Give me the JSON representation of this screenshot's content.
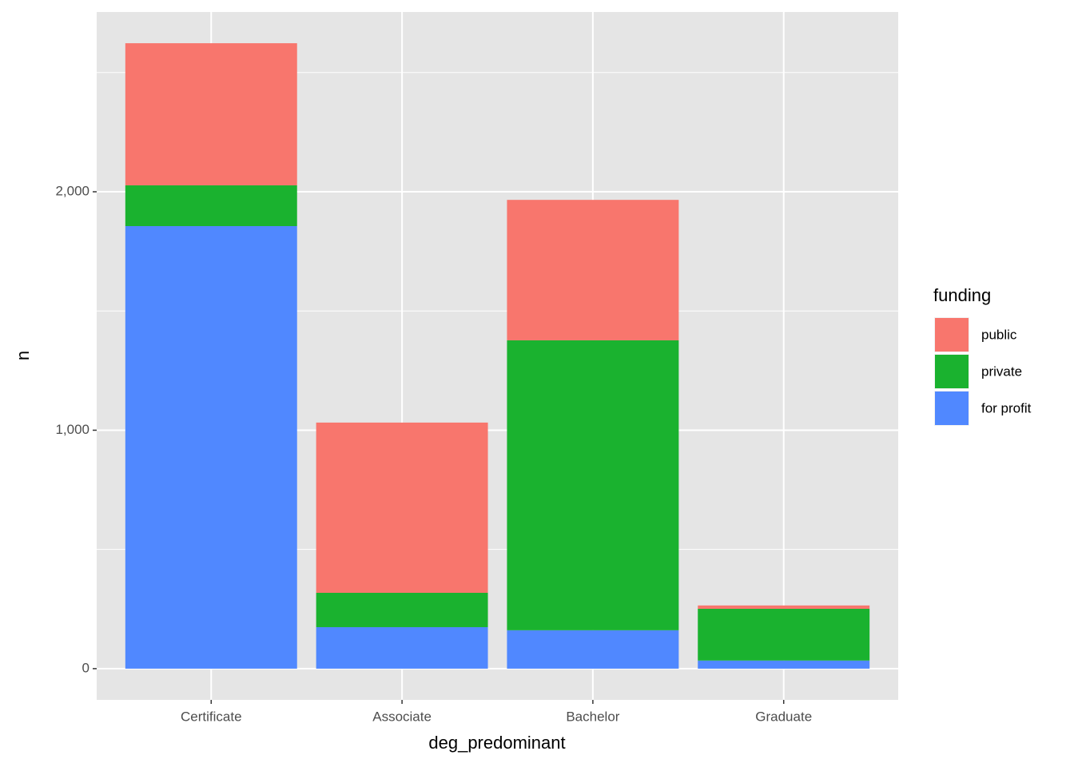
{
  "chart_data": {
    "type": "stacked_bar",
    "x_label": "deg_predominant",
    "y_label": "n",
    "categories": [
      "Certificate",
      "Associate",
      "Bachelor",
      "Graduate"
    ],
    "legend_title": "funding",
    "series": [
      {
        "name": "public",
        "color": "#F8766D",
        "values": [
          596,
          714,
          589,
          14
        ]
      },
      {
        "name": "private",
        "color": "#1AB22F",
        "values": [
          171,
          144,
          1216,
          217
        ]
      },
      {
        "name": "for profit",
        "color": "#5088FF",
        "values": [
          1856,
          174,
          161,
          34
        ]
      }
    ],
    "ylim": [
      -131,
      2754
    ],
    "yticks": [
      0,
      {
        "value": 1000,
        "label": "1,000"
      },
      {
        "value": 2000,
        "label": "2,000"
      }
    ],
    "minor_grid": [
      500,
      1500,
      2500
    ],
    "grid": true,
    "legend": "right"
  }
}
